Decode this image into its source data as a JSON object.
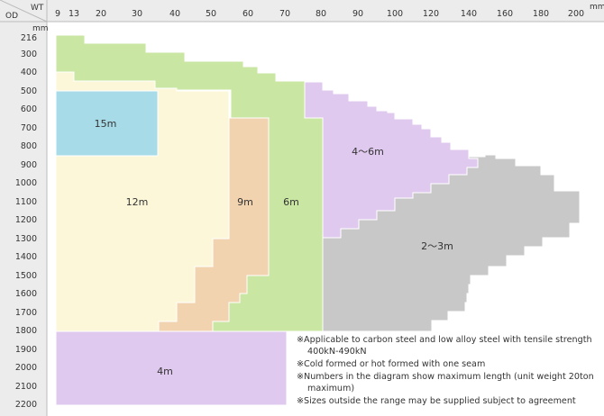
{
  "corner": {
    "wt": "WT",
    "od": "OD",
    "unit_x": "mm",
    "unit_y": "mm"
  },
  "wt_ticks": [
    "9",
    "13",
    "20",
    "30",
    "40",
    "50",
    "60",
    "70",
    "80",
    "90",
    "100",
    "120",
    "140",
    "160",
    "180",
    "200"
  ],
  "od_ticks": [
    "216",
    "300",
    "400",
    "500",
    "600",
    "700",
    "800",
    "900",
    "1000",
    "1100",
    "1200",
    "1300",
    "1400",
    "1500",
    "1600",
    "1700",
    "1800",
    "1900",
    "2000",
    "2100",
    "2200"
  ],
  "zones": [
    {
      "label": "15m",
      "color": "#a8dbe8"
    },
    {
      "label": "12m",
      "color": "#fbf7d8"
    },
    {
      "label": "9m",
      "color": "#f2d3b0"
    },
    {
      "label": "6m",
      "color": "#c9e6a3"
    },
    {
      "label": "4〜6m",
      "color": "#e0c9ef"
    },
    {
      "label": "2〜3m",
      "color": "#c8c8c8"
    },
    {
      "label": "4m",
      "color": "#e0c9ef"
    }
  ],
  "notes": [
    "※Applicable to carbon steel and low alloy steel with tensile strength 400kN-490kN",
    "※Cold formed or hot formed with one seam",
    "※Numbers in the diagram show maximum length (unit weight 20ton maximum)",
    "※Sizes outside the range may be supplied subject to agreement"
  ]
}
